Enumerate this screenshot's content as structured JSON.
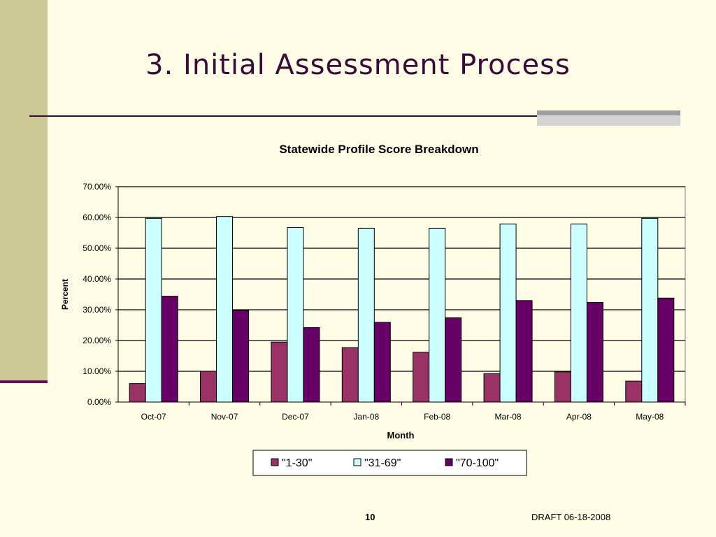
{
  "slide": {
    "title": "3. Initial Assessment Process",
    "page_number": "10",
    "footer": "DRAFT 06-18-2008"
  },
  "colors": {
    "background": "#FFFDE6",
    "title": "#3A0A3A",
    "series": [
      "#993366",
      "#CCFFFF",
      "#660066"
    ]
  },
  "chart_data": {
    "type": "bar",
    "title": "Statewide Profile Score Breakdown",
    "xlabel": "Month",
    "ylabel": "Percent",
    "ylim": [
      0,
      0.7
    ],
    "yticks": [
      0,
      0.1,
      0.2,
      0.3,
      0.4,
      0.5,
      0.6,
      0.7
    ],
    "ytick_labels": [
      "0.00%",
      "10.00%",
      "20.00%",
      "30.00%",
      "40.00%",
      "50.00%",
      "60.00%",
      "70.00%"
    ],
    "grid": true,
    "legend_position": "bottom",
    "categories": [
      "Oct-07",
      "Nov-07",
      "Dec-07",
      "Jan-08",
      "Feb-08",
      "Mar-08",
      "Apr-08",
      "May-08"
    ],
    "series": [
      {
        "name": "\"1-30\"",
        "values": [
          0.06,
          0.1,
          0.195,
          0.177,
          0.162,
          0.092,
          0.098,
          0.068
        ]
      },
      {
        "name": "\"31-69\"",
        "values": [
          0.597,
          0.603,
          0.567,
          0.565,
          0.565,
          0.579,
          0.579,
          0.597
        ]
      },
      {
        "name": "\"70-100\"",
        "values": [
          0.344,
          0.298,
          0.242,
          0.259,
          0.274,
          0.33,
          0.324,
          0.338
        ]
      }
    ]
  }
}
